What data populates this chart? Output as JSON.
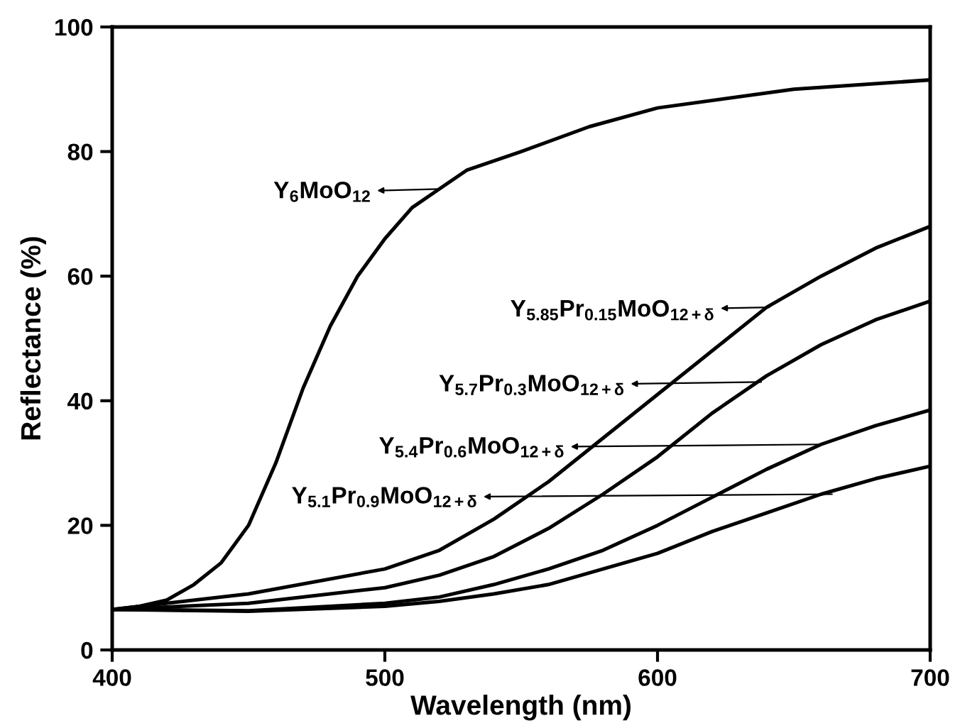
{
  "chart_data": {
    "type": "line",
    "xlabel": "Wavelength (nm)",
    "ylabel": "Reflectance (%)",
    "xlim": [
      400,
      700
    ],
    "ylim": [
      0,
      100
    ],
    "xticks": [
      400,
      500,
      600,
      700
    ],
    "yticks": [
      0,
      20,
      40,
      60,
      80,
      100
    ],
    "grid": false,
    "legend": false,
    "marker": "none",
    "line_style": "solid",
    "series": [
      {
        "color": "#000000",
        "x": [
          400,
          410,
          420,
          430,
          440,
          450,
          460,
          470,
          480,
          490,
          500,
          510,
          520,
          530,
          550,
          575,
          600,
          650,
          700
        ],
        "values": [
          6.5,
          7,
          8,
          10.5,
          14,
          20,
          30,
          42,
          52,
          60,
          66,
          71,
          74,
          77,
          80,
          84,
          87,
          90,
          91.5
        ]
      },
      {
        "color": "#000000",
        "x": [
          400,
          450,
          500,
          520,
          540,
          560,
          580,
          600,
          620,
          640,
          660,
          680,
          700
        ],
        "values": [
          6.5,
          9,
          13,
          16,
          21,
          27,
          34,
          41,
          48,
          55,
          60,
          64.5,
          68
        ]
      },
      {
        "color": "#000000",
        "x": [
          400,
          450,
          500,
          520,
          540,
          560,
          580,
          600,
          620,
          640,
          660,
          680,
          700
        ],
        "values": [
          6.5,
          7.5,
          10,
          12,
          15,
          19.5,
          25,
          31,
          38,
          44,
          49,
          53,
          56
        ]
      },
      {
        "color": "#000000",
        "x": [
          400,
          450,
          500,
          520,
          540,
          560,
          580,
          600,
          620,
          640,
          660,
          680,
          700
        ],
        "values": [
          6.5,
          6.3,
          7.5,
          8.5,
          10.5,
          13,
          16,
          20,
          24.5,
          29,
          33,
          36,
          38.5
        ]
      },
      {
        "color": "#000000",
        "x": [
          400,
          450,
          500,
          520,
          540,
          560,
          580,
          600,
          620,
          640,
          660,
          680,
          700
        ],
        "values": [
          6.5,
          6.2,
          7,
          7.8,
          9,
          10.5,
          13,
          15.5,
          19,
          22,
          25,
          27.5,
          29.5
        ]
      }
    ],
    "annotations": [
      {
        "text": "Y$_{6}$MoO$_{12}$",
        "x": 520,
        "y": 74
      },
      {
        "text": "Y$_{5.85}$Pr$_{0.15}$MoO$_{12+δ}$",
        "x": 641,
        "y": 55
      },
      {
        "text": "Y$_{5.7}$Pr$_{0.3}$MoO$_{12+δ}$",
        "x": 638,
        "y": 43
      },
      {
        "text": "Y$_{5.4}$Pr$_{0.6}$MoO$_{12+δ}$",
        "x": 661,
        "y": 33
      },
      {
        "text": "Y$_{5.1}$Pr$_{0.9}$MoO$_{12+δ}$",
        "x": 664,
        "y": 25
      }
    ]
  }
}
